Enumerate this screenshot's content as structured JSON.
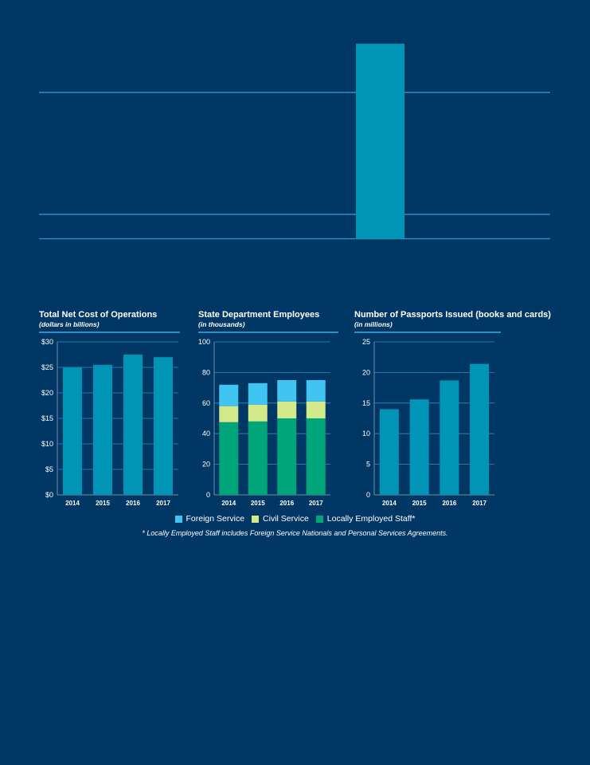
{
  "colors": {
    "background": "#003764",
    "bar": "#0095b6",
    "grid": "#2e8fc7",
    "axis": "#6f8ca8",
    "foreign_service": "#40c4f2",
    "civil_service": "#d4e98a",
    "locally_employed": "#00a67a"
  },
  "top_chart": {
    "value": 0.7,
    "gridlines": [
      0.5,
      0,
      -0.1
    ]
  },
  "chart_data": [
    {
      "type": "bar",
      "title": "Total Net Cost of Operations",
      "subtitle": "(dollars in billions)",
      "categories": [
        "2014",
        "2015",
        "2016",
        "2017"
      ],
      "values": [
        25,
        25.5,
        27.5,
        27
      ],
      "ylim": [
        0,
        30
      ],
      "yticks": [
        0,
        5,
        10,
        15,
        20,
        25,
        30
      ],
      "ytick_labels": [
        "$0",
        "$5",
        "$10",
        "$15",
        "$20",
        "$25",
        "$30"
      ],
      "grid": true
    },
    {
      "type": "bar",
      "stacked": true,
      "title": "State Department Employees",
      "subtitle": "(in thousands)",
      "categories": [
        "2014",
        "2015",
        "2016",
        "2017"
      ],
      "series": [
        {
          "name": "Locally Employed Staff*",
          "color": "#00a67a",
          "values": [
            47.5,
            48,
            50,
            50
          ]
        },
        {
          "name": "Civil Service",
          "color": "#d4e98a",
          "values": [
            10.5,
            11,
            11,
            11
          ]
        },
        {
          "name": "Foreign Service",
          "color": "#40c4f2",
          "values": [
            14,
            14,
            14,
            14
          ]
        }
      ],
      "ylim": [
        0,
        100
      ],
      "yticks": [
        0,
        20,
        40,
        60,
        80,
        100
      ],
      "ytick_labels": [
        "0",
        "20",
        "40",
        "60",
        "80",
        "100"
      ],
      "grid": true
    },
    {
      "type": "bar",
      "title": "Number of Passports Issued (books and cards)",
      "subtitle": "(in millions)",
      "categories": [
        "2014",
        "2015",
        "2016",
        "2017"
      ],
      "values": [
        14,
        15.6,
        18.7,
        21.4
      ],
      "ylim": [
        0,
        25
      ],
      "yticks": [
        0,
        5,
        10,
        15,
        20,
        25
      ],
      "ytick_labels": [
        "0",
        "5",
        "10",
        "15",
        "20",
        "25"
      ],
      "grid": true
    }
  ],
  "legend": {
    "items": [
      {
        "label": "Foreign Service",
        "color": "#40c4f2"
      },
      {
        "label": "Civil Service",
        "color": "#d4e98a"
      },
      {
        "label": "Locally Employed Staff*",
        "color": "#00a67a"
      }
    ]
  },
  "footnote": "* Locally Employed Staff includes Foreign Service Nationals and Personal Services Agreements."
}
